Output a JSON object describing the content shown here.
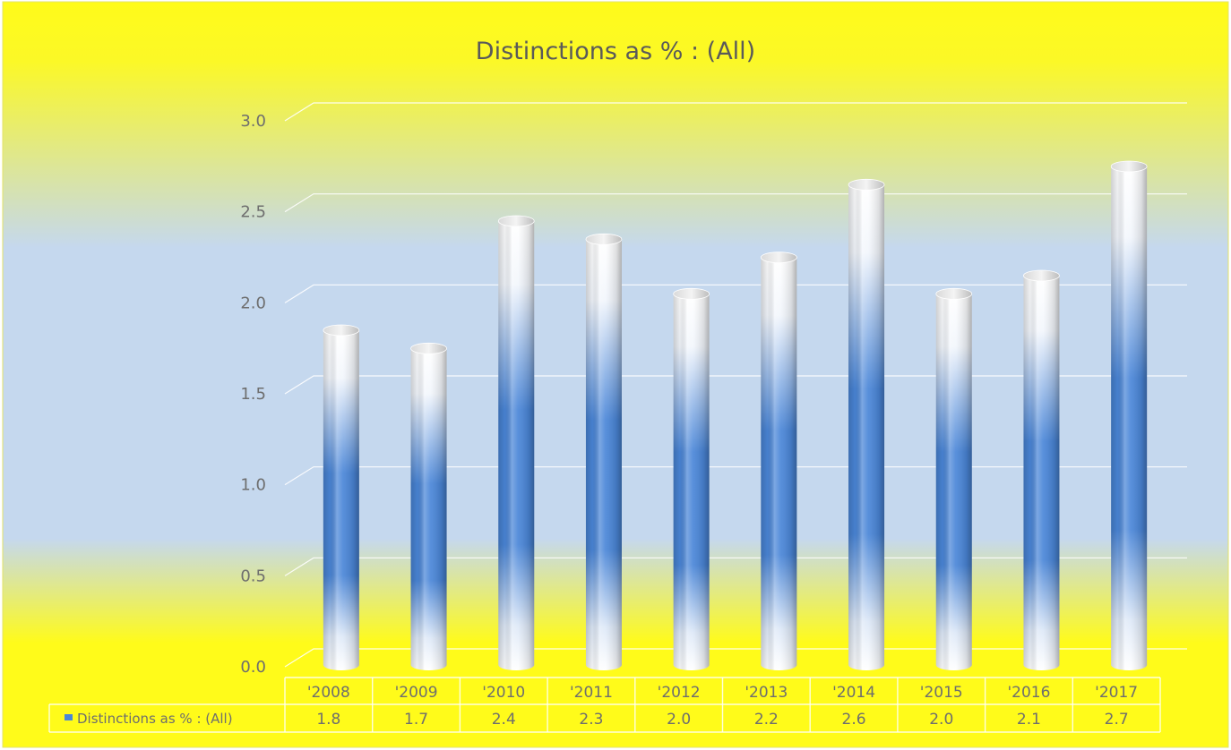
{
  "chart_data": {
    "type": "bar",
    "title": "Distinctions as % : (All)",
    "categories": [
      "'2008",
      "'2009",
      "'2010",
      "'2011",
      "'2012",
      "'2013",
      "'2014",
      "'2015",
      "'2016",
      "'2017"
    ],
    "series": [
      {
        "name": "Distinctions as % : (All)",
        "values": [
          1.8,
          1.7,
          2.4,
          2.3,
          2.0,
          2.2,
          2.6,
          2.0,
          2.1,
          2.7
        ],
        "value_labels": [
          "1.8",
          "1.7",
          "2.4",
          "2.3",
          "2.0",
          "2.2",
          "2.6",
          "2.0",
          "2.1",
          "2.7"
        ],
        "color": "#4a86d8"
      }
    ],
    "ylim": [
      0,
      3.0
    ],
    "yticks": [
      "0.0",
      "0.5",
      "1.0",
      "1.5",
      "2.0",
      "2.5",
      "3.0"
    ],
    "xlabel": "",
    "ylabel": "",
    "grid": true,
    "data_table": true,
    "bar_style": "3d-cylinder",
    "background": {
      "top": "#fffb1a",
      "middle": "#c5d8ee",
      "bottom": "#fffb1a"
    },
    "colors": {
      "text": "#6e6e6e",
      "title": "#5a5a5a",
      "gridline": "#ffffff"
    }
  }
}
